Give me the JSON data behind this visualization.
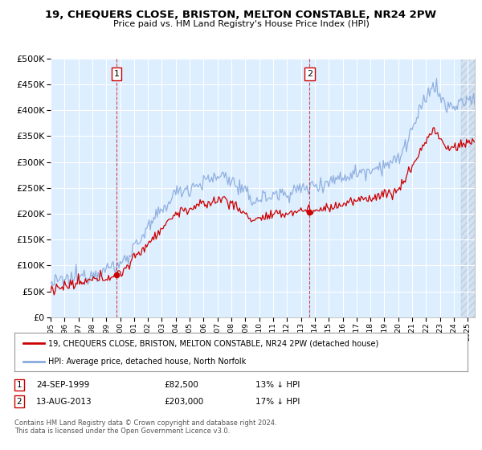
{
  "title": "19, CHEQUERS CLOSE, BRISTON, MELTON CONSTABLE, NR24 2PW",
  "subtitle": "Price paid vs. HM Land Registry's House Price Index (HPI)",
  "legend_line1": "19, CHEQUERS CLOSE, BRISTON, MELTON CONSTABLE, NR24 2PW (detached house)",
  "legend_line2": "HPI: Average price, detached house, North Norfolk",
  "annotation1_label": "1",
  "annotation1_date": "24-SEP-1999",
  "annotation1_price": "£82,500",
  "annotation1_hpi": "13% ↓ HPI",
  "annotation2_label": "2",
  "annotation2_date": "13-AUG-2013",
  "annotation2_price": "£203,000",
  "annotation2_hpi": "17% ↓ HPI",
  "copyright": "Contains HM Land Registry data © Crown copyright and database right 2024.\nThis data is licensed under the Open Government Licence v3.0.",
  "sale1_year": 1999.73,
  "sale1_value": 82500,
  "sale2_year": 2013.62,
  "sale2_value": 203000,
  "red_color": "#cc0000",
  "blue_color": "#88aadd",
  "plot_bg": "#ddeeff",
  "hatch_bg": "#ccddee",
  "ylim_min": 0,
  "ylim_max": 500000,
  "xlim_min": 1995.0,
  "xlim_max": 2025.5,
  "hatch_start": 2024.5
}
